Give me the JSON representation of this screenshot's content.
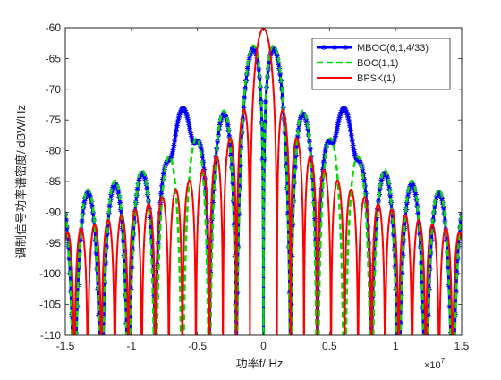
{
  "chart_data": {
    "type": "line",
    "xlabel": "功率f/ Hz",
    "ylabel": "调制信号功率谱密度/ dBW/Hz",
    "x_exponent_label": "×10",
    "x_exponent_power": "7",
    "xlim": [
      -15000000,
      15000000
    ],
    "ylim": [
      -110,
      -60
    ],
    "x_ticks": [
      -15000000,
      -10000000,
      -5000000,
      0,
      5000000,
      10000000,
      15000000
    ],
    "x_tick_labels": [
      "-1.5",
      "-1",
      "-0.5",
      "0",
      "0.5",
      "1",
      "1.5"
    ],
    "y_ticks": [
      -110,
      -105,
      -100,
      -95,
      -90,
      -85,
      -80,
      -75,
      -70,
      -65,
      -60
    ],
    "y_tick_labels": [
      "-110",
      "-105",
      "-100",
      "-95",
      "-90",
      "-85",
      "-80",
      "-75",
      "-70",
      "-65",
      "-60"
    ],
    "grid": false,
    "legend_position": "top-right",
    "series": [
      {
        "name": "MBOC(6,1,4/33)",
        "color": "#0000ff",
        "style": "solid-star",
        "model": "mboc",
        "fc": 1023000,
        "m": 6,
        "n": 1,
        "weight": 0.1212
      },
      {
        "name": "BOC(1,1)",
        "color": "#00dd00",
        "style": "dashed",
        "model": "boc",
        "fc": 1023000,
        "m": 1
      },
      {
        "name": "BPSK(1)",
        "color": "#ff0000",
        "style": "solid",
        "model": "bpsk",
        "fc": 1023000
      }
    ]
  }
}
